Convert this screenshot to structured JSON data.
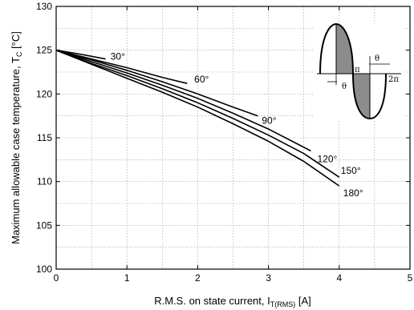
{
  "chart_data": {
    "type": "line",
    "xlabel": "R.M.S. on state current, I",
    "xlabel_sub": "T(RMS)",
    "xlabel_unit": " [A]",
    "ylabel": "Maximum allowable case temperature, T",
    "ylabel_sub": "C",
    "ylabel_unit": " [°C]",
    "xlim": [
      0,
      5
    ],
    "ylim": [
      100,
      130
    ],
    "xticks": [
      0,
      1,
      2,
      3,
      4,
      5
    ],
    "yticks": [
      100,
      105,
      110,
      115,
      120,
      125,
      130
    ],
    "grid": true,
    "series": [
      {
        "name": "30°",
        "x": [
          0,
          0.3,
          0.5,
          0.7
        ],
        "y": [
          125,
          124.6,
          124.3,
          124.0
        ]
      },
      {
        "name": "60°",
        "x": [
          0,
          0.5,
          1.0,
          1.5,
          1.85
        ],
        "y": [
          125,
          124.0,
          123.0,
          121.9,
          121.2
        ]
      },
      {
        "name": "90°",
        "x": [
          0,
          0.5,
          1.0,
          1.5,
          2.0,
          2.5,
          2.85
        ],
        "y": [
          125,
          123.9,
          122.7,
          121.4,
          120.0,
          118.5,
          117.5
        ]
      },
      {
        "name": "120°",
        "x": [
          0,
          0.5,
          1.0,
          1.5,
          2.0,
          2.5,
          3.0,
          3.6
        ],
        "y": [
          125,
          123.7,
          122.4,
          121.0,
          119.5,
          117.8,
          116.0,
          113.5
        ]
      },
      {
        "name": "150°",
        "x": [
          0,
          0.5,
          1.0,
          1.5,
          2.0,
          2.5,
          3.0,
          3.5,
          4.0
        ],
        "y": [
          125,
          123.5,
          122.1,
          120.6,
          119.0,
          117.2,
          115.3,
          113.2,
          110.5
        ]
      },
      {
        "name": "180°",
        "x": [
          0,
          0.5,
          1.0,
          1.5,
          2.0,
          2.5,
          3.0,
          3.5,
          4.0
        ],
        "y": [
          125,
          123.4,
          121.8,
          120.2,
          118.5,
          116.6,
          114.6,
          112.3,
          109.5
        ]
      }
    ],
    "inset": {
      "labels": [
        "θ",
        "π",
        "θ",
        "2π"
      ]
    }
  }
}
